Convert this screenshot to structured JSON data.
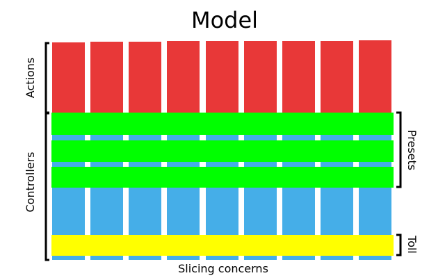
{
  "title": "Model",
  "bottom_label": "Slicing concerns",
  "left_labels": {
    "actions": "Actions",
    "controllers": "Controllers"
  },
  "right_labels": {
    "presets": "Presets",
    "toll": "Toll"
  },
  "columns": {
    "count": 9
  },
  "colors": {
    "actions": "#e83838",
    "controllers": "#45aee8",
    "presets": "#00ff00",
    "toll": "#ffff00",
    "bracket": "#000000"
  }
}
